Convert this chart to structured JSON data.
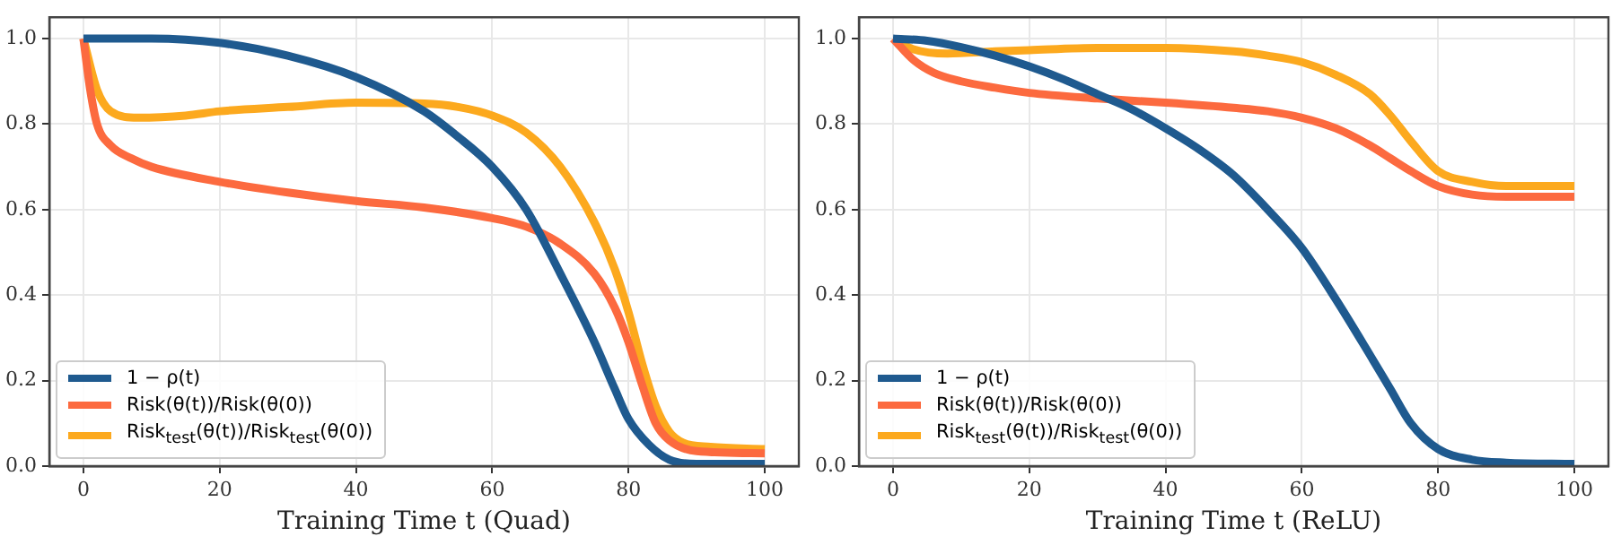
{
  "chart_data": [
    {
      "type": "line",
      "xlabel": "Training Time t (Quad)",
      "xlim": [
        -5,
        105
      ],
      "xticks": [
        0,
        20,
        40,
        60,
        80,
        100
      ],
      "ylim": [
        0,
        1.05
      ],
      "yticks": [
        {
          "value": 0,
          "label": "0.0"
        },
        {
          "value": 0.2,
          "label": "0.2"
        },
        {
          "value": 0.4,
          "label": "0.4"
        },
        {
          "value": 0.6,
          "label": "0.6"
        },
        {
          "value": 0.8,
          "label": "0.8"
        },
        {
          "value": 1,
          "label": "1.0"
        }
      ],
      "grid": true,
      "legend": "bottom left",
      "marker": "none",
      "line_style": "solid",
      "series": [
        {
          "name": "1 − ρ(t)",
          "color": "#1f5a8f",
          "x": [
            0,
            10,
            20,
            30,
            40,
            50,
            55,
            60,
            65,
            70,
            75,
            78,
            80,
            83,
            86,
            90,
            100
          ],
          "values": [
            1,
            1,
            0.99,
            0.96,
            0.91,
            0.83,
            0.77,
            0.7,
            0.6,
            0.45,
            0.29,
            0.18,
            0.11,
            0.05,
            0.015,
            0.005,
            0.005
          ]
        },
        {
          "name": "Risk(θ(t))/Risk(θ(0))",
          "color": "#fc6a3f",
          "x": [
            0,
            1,
            2,
            4,
            7,
            10,
            20,
            30,
            40,
            50,
            60,
            65,
            70,
            75,
            78,
            80,
            82,
            84,
            86,
            90,
            100
          ],
          "values": [
            1,
            0.88,
            0.8,
            0.75,
            0.72,
            0.7,
            0.665,
            0.64,
            0.62,
            0.605,
            0.58,
            0.56,
            0.52,
            0.45,
            0.37,
            0.29,
            0.19,
            0.1,
            0.06,
            0.035,
            0.03
          ]
        },
        {
          "name": "Risk$_{test}$(θ(t))/Risk$_{test}$(θ(0))",
          "color": "#fca91e",
          "x": [
            0,
            2,
            4,
            8,
            15,
            20,
            30,
            40,
            50,
            55,
            60,
            65,
            70,
            75,
            78,
            80,
            82,
            84,
            86,
            88,
            92,
            100
          ],
          "values": [
            1,
            0.88,
            0.83,
            0.815,
            0.82,
            0.83,
            0.84,
            0.85,
            0.848,
            0.84,
            0.82,
            0.78,
            0.7,
            0.57,
            0.46,
            0.36,
            0.24,
            0.14,
            0.08,
            0.055,
            0.045,
            0.04
          ]
        }
      ]
    },
    {
      "type": "line",
      "xlabel": "Training Time t (ReLU)",
      "xlim": [
        -5,
        105
      ],
      "xticks": [
        0,
        20,
        40,
        60,
        80,
        100
      ],
      "ylim": [
        0,
        1.05
      ],
      "yticks": [
        {
          "value": 0,
          "label": "0.0"
        },
        {
          "value": 0.2,
          "label": "0.2"
        },
        {
          "value": 0.4,
          "label": "0.4"
        },
        {
          "value": 0.6,
          "label": "0.6"
        },
        {
          "value": 0.8,
          "label": "0.8"
        },
        {
          "value": 1,
          "label": "1.0"
        }
      ],
      "grid": true,
      "legend": "bottom left",
      "marker": "none",
      "line_style": "solid",
      "series": [
        {
          "name": "1 − ρ(t)",
          "color": "#1f5a8f",
          "x": [
            0,
            5,
            10,
            15,
            20,
            25,
            30,
            35,
            40,
            45,
            50,
            55,
            60,
            65,
            70,
            73,
            76,
            80,
            85,
            90,
            100
          ],
          "values": [
            1,
            0.995,
            0.98,
            0.96,
            0.935,
            0.905,
            0.87,
            0.835,
            0.79,
            0.74,
            0.68,
            0.6,
            0.51,
            0.39,
            0.26,
            0.18,
            0.1,
            0.04,
            0.015,
            0.008,
            0.005
          ]
        },
        {
          "name": "Risk(θ(t))/Risk(θ(0))",
          "color": "#fc6a3f",
          "x": [
            0,
            3,
            6,
            10,
            15,
            20,
            30,
            40,
            50,
            55,
            60,
            65,
            70,
            73,
            76,
            80,
            85,
            90,
            100
          ],
          "values": [
            1,
            0.95,
            0.92,
            0.9,
            0.885,
            0.873,
            0.86,
            0.85,
            0.838,
            0.83,
            0.815,
            0.79,
            0.75,
            0.72,
            0.69,
            0.655,
            0.635,
            0.63,
            0.63
          ]
        },
        {
          "name": "Risk$_{test}$(θ(t))/Risk$_{test}$(θ(0))",
          "color": "#fca91e",
          "x": [
            0,
            3,
            8,
            15,
            20,
            30,
            40,
            50,
            55,
            60,
            65,
            70,
            73,
            76,
            80,
            85,
            90,
            100
          ],
          "values": [
            1,
            0.975,
            0.965,
            0.97,
            0.973,
            0.978,
            0.978,
            0.97,
            0.96,
            0.945,
            0.915,
            0.87,
            0.82,
            0.76,
            0.69,
            0.665,
            0.655,
            0.655
          ]
        }
      ]
    }
  ]
}
